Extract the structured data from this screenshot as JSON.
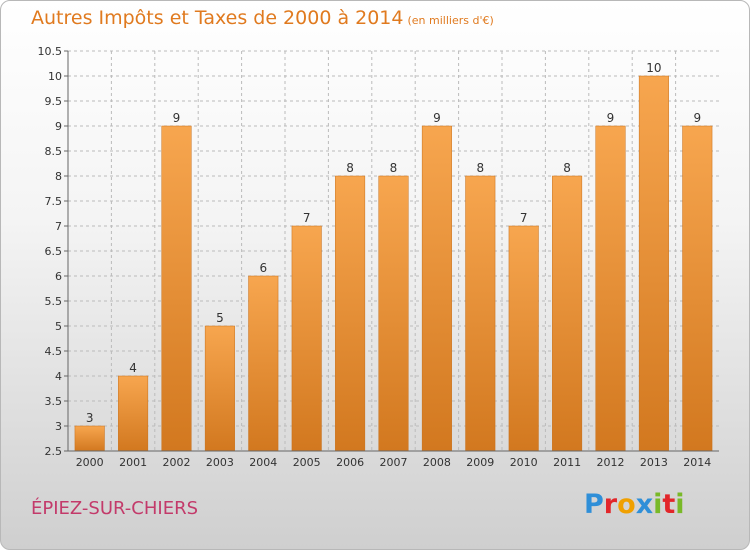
{
  "title": "Autres Impôts et Taxes de 2000 à 2014",
  "subtitle": "(en milliers d'€)",
  "place": "ÉPIEZ-SUR-CHIERS",
  "brand": {
    "text": "Proxiti",
    "letters": [
      {
        "ch": "P",
        "color": "#2f8fd8"
      },
      {
        "ch": "r",
        "color": "#e2262a"
      },
      {
        "ch": "o",
        "color": "#f0a000"
      },
      {
        "ch": "x",
        "color": "#2f8fd8"
      },
      {
        "ch": "i",
        "color": "#79b928"
      },
      {
        "ch": "t",
        "color": "#e2262a"
      },
      {
        "ch": "i",
        "color": "#79b928"
      }
    ]
  },
  "colors": {
    "bar_top": "#f7a64f",
    "bar_bottom": "#d2781f",
    "bar_stroke": "#c86e16",
    "grid": "#bbbbbb",
    "text": "#333333"
  },
  "chart_data": {
    "type": "bar",
    "categories": [
      "2000",
      "2001",
      "2002",
      "2003",
      "2004",
      "2005",
      "2006",
      "2007",
      "2008",
      "2009",
      "2010",
      "2011",
      "2012",
      "2013",
      "2014"
    ],
    "values": [
      3,
      4,
      9,
      5,
      6,
      7,
      8,
      8,
      9,
      8,
      7,
      8,
      9,
      10,
      9
    ],
    "data_labels": [
      "3",
      "4",
      "9",
      "5",
      "6",
      "7",
      "8",
      "8",
      "9",
      "8",
      "7",
      "8",
      "9",
      "10",
      "9"
    ],
    "yticks": [
      "2.5",
      "3",
      "3.5",
      "4",
      "4.5",
      "5",
      "5.5",
      "6",
      "6.5",
      "7",
      "7.5",
      "8",
      "8.5",
      "9",
      "9.5",
      "10",
      "10.5"
    ],
    "ylim": [
      2.5,
      10.5
    ],
    "grid": "horizontal dashed",
    "title": "Autres Impôts et Taxes de 2000 à 2014",
    "xlabel": "",
    "ylabel": ""
  }
}
